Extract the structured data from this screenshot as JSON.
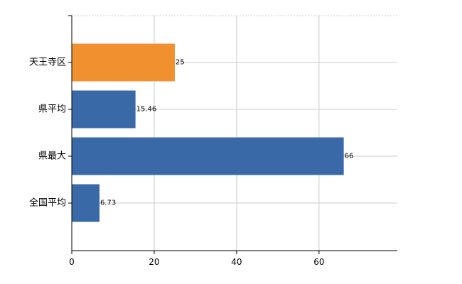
{
  "chart_data": {
    "type": "bar",
    "orientation": "horizontal",
    "categories": [
      "天王寺区",
      "県平均",
      "県最大",
      "全国平均"
    ],
    "values": [
      25,
      15.46,
      66,
      6.73
    ],
    "value_labels": [
      "25",
      "15.46",
      "66",
      "6.73"
    ],
    "highlight_index": 0,
    "xlim": [
      0,
      79
    ],
    "x_ticks": [
      0,
      20,
      40,
      60
    ],
    "grid": true,
    "legend": "none",
    "colors": {
      "highlight": "#f0902f",
      "default": "#3a69a8",
      "grid": "#cccccc",
      "axis": "#000000"
    },
    "title": "",
    "xlabel": "",
    "ylabel": ""
  }
}
